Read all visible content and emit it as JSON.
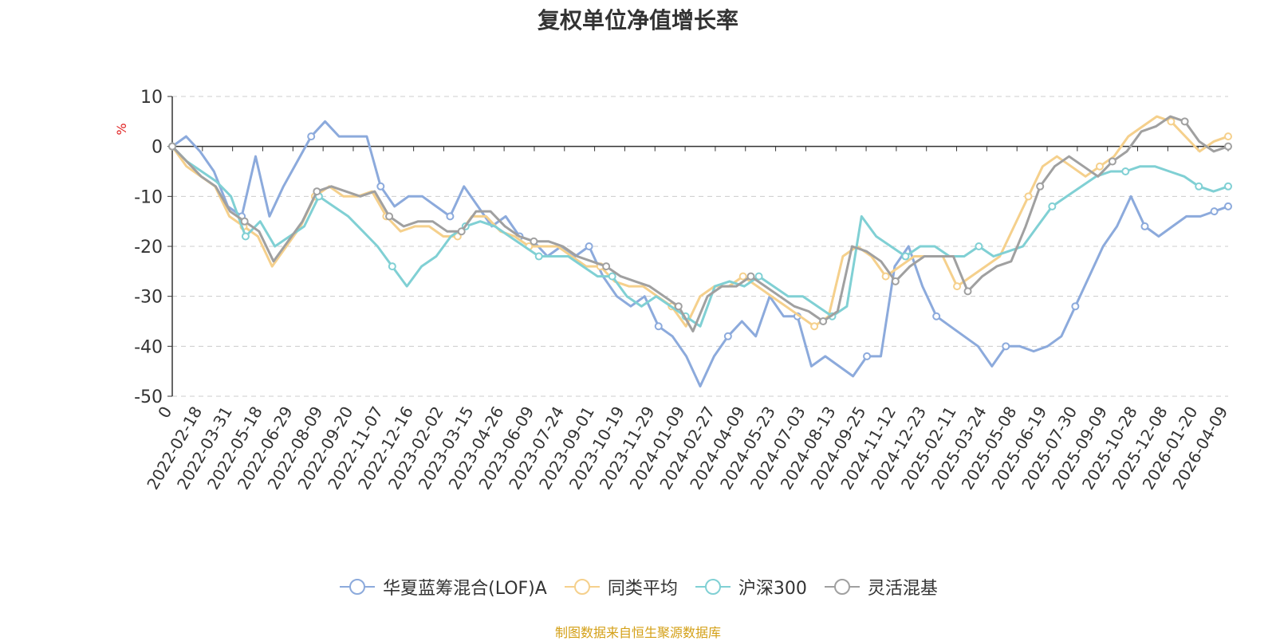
{
  "chart_data": {
    "type": "line",
    "title": "复权单位净值增长率",
    "ylabel": "%",
    "ylim": [
      -50,
      10
    ],
    "yticks": [
      10,
      0,
      -10,
      -20,
      -30,
      -40,
      -50
    ],
    "x_ticks": [
      "0",
      "2022-02-18",
      "2022-03-31",
      "2022-05-18",
      "2022-06-29",
      "2022-08-09",
      "2022-09-20",
      "2022-11-07",
      "2022-12-16",
      "2023-02-02",
      "2023-03-15",
      "2023-04-26",
      "2023-06-09",
      "2023-07-24",
      "2023-09-01",
      "2023-10-19",
      "2023-11-29",
      "2024-01-09",
      "2024-02-27",
      "2024-04-09",
      "2024-05-23",
      "2024-07-03",
      "2024-08-13",
      "2024-09-25",
      "2024-11-12",
      "2024-12-23",
      "2025-02-11",
      "2025-03-24",
      "2025-05-08",
      "2025-06-19",
      "2025-07-30",
      "2025-09-09",
      "2025-10-28",
      "2025-12-08",
      "2026-01-20",
      "2026-04-09"
    ],
    "grid": true,
    "legend_position": "bottom",
    "series": [
      {
        "name": "华夏蓝筹混合(LOF)A",
        "color": "#8caadc",
        "values": [
          0,
          2,
          -1,
          -5,
          -12,
          -14,
          -2,
          -14,
          -8,
          -3,
          2,
          5,
          2,
          2,
          2,
          -8,
          -12,
          -10,
          -10,
          -12,
          -14,
          -8,
          -12,
          -16,
          -14,
          -18,
          -19,
          -22,
          -20,
          -22,
          -20,
          -26,
          -30,
          -32,
          -30,
          -36,
          -38,
          -42,
          -48,
          -42,
          -38,
          -35,
          -38,
          -30,
          -34,
          -34,
          -44,
          -42,
          -44,
          -46,
          -42,
          -42,
          -24,
          -20,
          -28,
          -34,
          -36,
          -38,
          -40,
          -44,
          -40,
          -40,
          -41,
          -40,
          -38,
          -32,
          -26,
          -20,
          -16,
          -10,
          -16,
          -18,
          -16,
          -14,
          -14,
          -13,
          -12
        ]
      },
      {
        "name": "同类平均",
        "color": "#f5d08c",
        "values": [
          0,
          -4,
          -6,
          -8,
          -14,
          -16,
          -18,
          -24,
          -20,
          -16,
          -10,
          -8,
          -10,
          -10,
          -9,
          -14,
          -17,
          -16,
          -16,
          -18,
          -18,
          -14,
          -14,
          -17,
          -18,
          -20,
          -20,
          -20,
          -22,
          -24,
          -24,
          -27,
          -28,
          -28,
          -30,
          -32,
          -36,
          -30,
          -28,
          -28,
          -26,
          -28,
          -30,
          -32,
          -34,
          -36,
          -34,
          -22,
          -20,
          -22,
          -26,
          -24,
          -22,
          -22,
          -22,
          -28,
          -26,
          -24,
          -22,
          -16,
          -10,
          -4,
          -2,
          -4,
          -6,
          -4,
          -2,
          2,
          4,
          6,
          5,
          2,
          -1,
          1,
          2
        ]
      },
      {
        "name": "沪深300",
        "color": "#80d0d4",
        "values": [
          0,
          -3,
          -5,
          -7,
          -10,
          -18,
          -15,
          -20,
          -18,
          -16,
          -10,
          -12,
          -14,
          -17,
          -20,
          -24,
          -28,
          -24,
          -22,
          -18,
          -16,
          -15,
          -16,
          -18,
          -20,
          -22,
          -22,
          -22,
          -24,
          -26,
          -26,
          -30,
          -32,
          -30,
          -32,
          -34,
          -36,
          -28,
          -27,
          -28,
          -26,
          -28,
          -30,
          -30,
          -32,
          -34,
          -32,
          -14,
          -18,
          -20,
          -22,
          -20,
          -20,
          -22,
          -22,
          -20,
          -22,
          -21,
          -20,
          -16,
          -12,
          -10,
          -8,
          -6,
          -5,
          -5,
          -4,
          -4,
          -5,
          -6,
          -8,
          -9,
          -8
        ]
      },
      {
        "name": "灵活混基",
        "color": "#a0a0a0",
        "values": [
          0,
          -3,
          -6,
          -8,
          -13,
          -15,
          -17,
          -23,
          -19,
          -15,
          -9,
          -8,
          -9,
          -10,
          -9,
          -14,
          -16,
          -15,
          -15,
          -17,
          -17,
          -13,
          -13,
          -16,
          -18,
          -19,
          -19,
          -20,
          -22,
          -23,
          -24,
          -26,
          -27,
          -28,
          -30,
          -32,
          -37,
          -30,
          -28,
          -28,
          -26,
          -28,
          -30,
          -32,
          -33,
          -35,
          -33,
          -20,
          -21,
          -23,
          -27,
          -24,
          -22,
          -22,
          -22,
          -29,
          -26,
          -24,
          -23,
          -16,
          -8,
          -4,
          -2,
          -4,
          -6,
          -3,
          -1,
          3,
          4,
          6,
          5,
          1,
          -1,
          0
        ]
      }
    ]
  },
  "source_note": "制图数据来自恒生聚源数据库"
}
